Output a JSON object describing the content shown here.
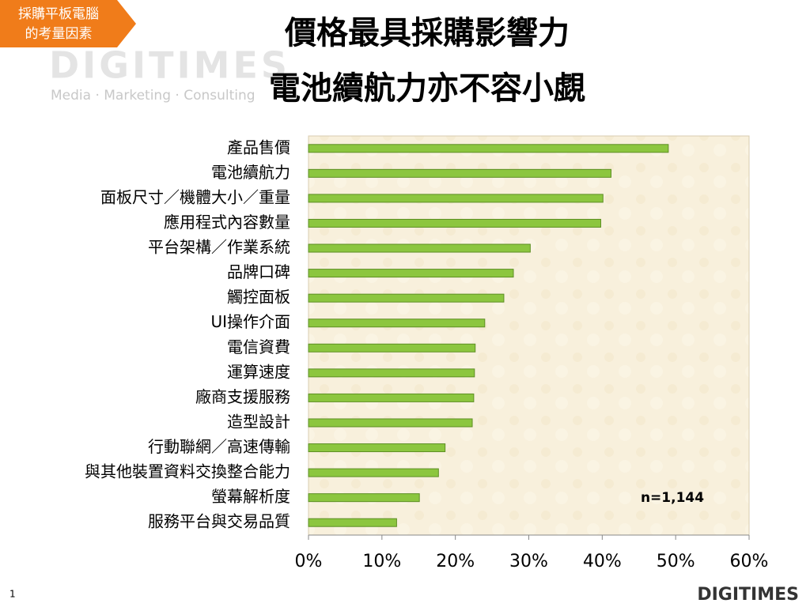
{
  "header": {
    "tag": [
      "採購平板電腦",
      "的考量因素"
    ],
    "title": [
      "價格最具採購影響力",
      "電池續航力亦不容小覷"
    ],
    "watermark": "DIGITIMES",
    "watermark_tagline": "Media · Marketing · Consulting"
  },
  "chart_data": {
    "type": "barh",
    "categories": [
      "產品售價",
      "電池續航力",
      "面板尺寸／機體大小／重量",
      "應用程式內容數量",
      "平台架構／作業系統",
      "品牌口碑",
      "觸控面板",
      "UI操作介面",
      "電信資費",
      "運算速度",
      "廠商支援服務",
      "造型設計",
      "行動聯網／高速傳輸",
      "與其他裝置資料交換整合能力",
      "螢幕解析度",
      "服務平台與交易品質"
    ],
    "values": [
      49.0,
      41.2,
      40.1,
      39.8,
      30.2,
      27.9,
      26.6,
      24.0,
      22.7,
      22.6,
      22.5,
      22.3,
      18.6,
      17.7,
      15.1,
      12.0
    ],
    "color": "#8cc63f",
    "xlim": [
      0,
      60
    ],
    "xticks": [
      {
        "value": 0,
        "label": "0%"
      },
      {
        "value": 10,
        "label": "10%"
      },
      {
        "value": 20,
        "label": "20%"
      },
      {
        "value": 30,
        "label": "30%"
      },
      {
        "value": 40,
        "label": "40%"
      },
      {
        "value": 50,
        "label": "50%"
      },
      {
        "value": 60,
        "label": "60%"
      }
    ],
    "grid": false,
    "annotation": "n=1,144"
  },
  "footer": {
    "page": "1",
    "logo": "DIGITIMES"
  }
}
